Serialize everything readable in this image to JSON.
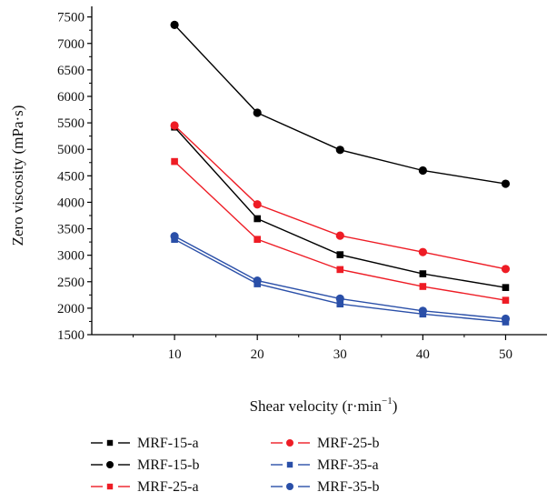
{
  "chart_data": {
    "type": "line",
    "xlabel": "Shear velocity (r·min",
    "xlabel_sup": "−1",
    "xlabel_suffix": ")",
    "ylabel": "Zero viscosity (mPa·s)",
    "x": [
      10,
      20,
      30,
      40,
      50
    ],
    "xlim": [
      0,
      55
    ],
    "ylim": [
      1500,
      7700
    ],
    "xticks": [
      10,
      20,
      30,
      40,
      50
    ],
    "yticks": [
      1500,
      2000,
      2500,
      3000,
      3500,
      4000,
      4500,
      5000,
      5500,
      6000,
      6500,
      7000,
      7500
    ],
    "grid": false,
    "legend_position": "bottom",
    "series": [
      {
        "name": "MRF-15-a",
        "color": "#000000",
        "marker": "square",
        "values": [
          5420,
          3690,
          3010,
          2650,
          2390
        ]
      },
      {
        "name": "MRF-15-b",
        "color": "#000000",
        "marker": "circle",
        "values": [
          7350,
          5690,
          4990,
          4600,
          4350
        ]
      },
      {
        "name": "MRF-25-a",
        "color": "#ee1c25",
        "marker": "square",
        "values": [
          4770,
          3300,
          2730,
          2410,
          2150
        ]
      },
      {
        "name": "MRF-25-b",
        "color": "#ee1c25",
        "marker": "circle",
        "values": [
          5450,
          3960,
          3370,
          3060,
          2740
        ]
      },
      {
        "name": "MRF-35-a",
        "color": "#2a4fa8",
        "marker": "square",
        "values": [
          3300,
          2460,
          2080,
          1890,
          1740
        ]
      },
      {
        "name": "MRF-35-b",
        "color": "#2a4fa8",
        "marker": "circle",
        "values": [
          3360,
          2520,
          2180,
          1950,
          1800
        ]
      }
    ]
  }
}
